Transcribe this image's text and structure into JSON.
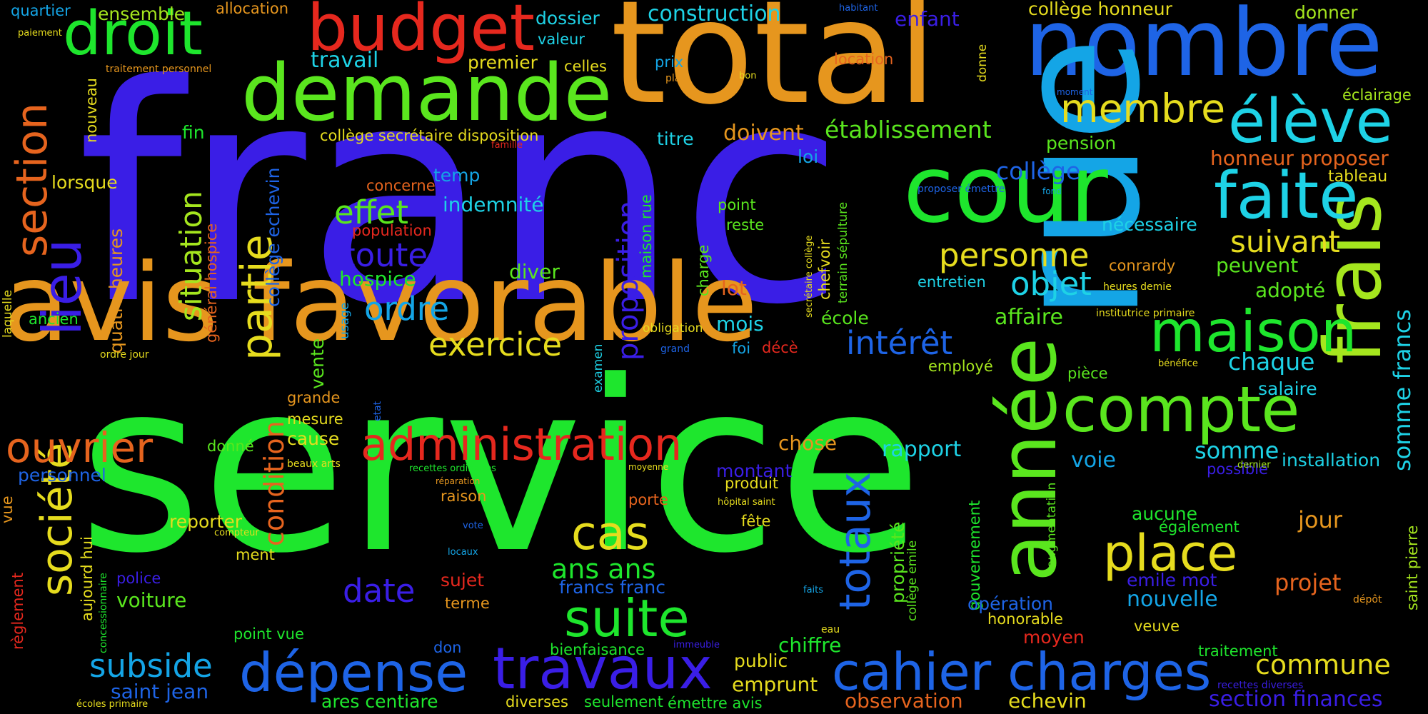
{
  "colors": {
    "background": "#000000",
    "blue_violet": "#3a1ee6",
    "green": "#1ee62d",
    "orange": "#e6961e",
    "blue": "#1e64e6",
    "sky": "#14a5e6",
    "lime": "#5ae61e",
    "red": "#e6281e",
    "yellow": "#e6dc1e",
    "cyan": "#1ed2e6"
  },
  "words": {
    "franc": "franc",
    "service": "service",
    "total": "total",
    "nombre": "nombre",
    "rue": "rue",
    "avis_favorable": "avis favorable",
    "demande": "demande",
    "budget": "budget",
    "droit": "droit",
    "cour": "cour",
    "annee": "année",
    "frais": "frais",
    "eleve": "élève",
    "faite": "faite",
    "compte": "compte",
    "maison": "maison",
    "administration": "administration",
    "travaux": "travaux",
    "depense": "dépense",
    "cahier_charges": "cahier charges",
    "place": "place",
    "suite": "suite",
    "cas": "cas",
    "lieu": "lieu",
    "section": "section",
    "partie": "partie",
    "societe": "société",
    "ouvrier": "ouvrier",
    "membre": "membre",
    "exercice": "exercice",
    "totaux": "totaux",
    "situation": "situation",
    "proposition": "proposition",
    "effet": "effet",
    "toute": "toute",
    "ordre": "ordre",
    "personne": "personne",
    "suivant": "suivant",
    "objet": "objet",
    "interet": "intérêt",
    "etablissement": "établissement",
    "college": "collège",
    "date": "date",
    "ans_ans": "ans ans",
    "subside": "subside",
    "condition": "condition",
    "commune": "commune",
    "section_finances": "section finances",
    "somme_francs": "somme francs",
    "nouvelle": "nouvelle",
    "projet": "projet",
    "jour": "jour",
    "chaque": "chaque",
    "rapport": "rapport",
    "somme": "somme",
    "voie": "voie",
    "affaire": "affaire",
    "adopte": "adopté",
    "peuvent": "peuvent",
    "pension": "pension",
    "honneur_proposer": "honneur proposer",
    "tableau": "tableau",
    "eclairage": "éclairage",
    "donner": "donner",
    "college_honneur": "collège honneur",
    "construction": "construction",
    "dossier": "dossier",
    "valeur": "valeur",
    "celles": "celles",
    "premier": "premier",
    "travail": "travail",
    "quartier": "quartier",
    "ensemble": "ensemble",
    "allocation": "allocation",
    "paiement": "paiement",
    "traitement_personnel": "traitement personnel",
    "enfant": "enfant",
    "location": "location",
    "habitant": "habitant",
    "prix": "prix",
    "plan": "plan",
    "bon": "bon",
    "donne": "donne",
    "moment": "moment",
    "nouveau": "nouveau",
    "fin": "fin",
    "college_secretaire_disposition": "collège secrétaire disposition",
    "famille": "famille",
    "titre": "titre",
    "doivent": "doivent",
    "college_echevin": "collège echevin",
    "lorsque": "lorsque",
    "concerne": "concerne",
    "temp": "temp",
    "indemnite": "indemnité",
    "population": "population",
    "hospice": "hospice",
    "diver": "diver",
    "general_hospice": "général hospice",
    "quatre_heures": "quatre heures",
    "laquelle": "laquelle",
    "ancien": "ancien",
    "ordre_jour": "ordre jour",
    "point": "point",
    "reste": "reste",
    "loi": "loi",
    "charge": "charge",
    "maison_rue": "maison rue",
    "lot": "lot",
    "mois": "mois",
    "obligation": "obligation",
    "foi": "foi",
    "grand": "grand",
    "deces": "décè",
    "examen": "examen",
    "usage": "usage",
    "vente": "vente",
    "grande": "grande",
    "mesure": "mesure",
    "cause": "cause",
    "etat": "etat",
    "beaux_arts": "beaux arts",
    "recettes_ordinaires": "recettes ordinaires",
    "reparation": "réparation",
    "moyenne": "moyenne",
    "chose": "chose",
    "montant": "montant",
    "produit": "produit",
    "hopital_saint": "hôpital saint",
    "fete": "fête",
    "porte": "porte",
    "raison": "raison",
    "reporter": "reporter",
    "compteur": "compteur",
    "donne2": "donné",
    "personnel": "personnel",
    "vue": "vue",
    "ment": "ment",
    "aujourd_hui": "aujourd hui",
    "police": "police",
    "voiture": "voiture",
    "concessionnaire": "concessionnaire",
    "reglement": "règlement",
    "point_vue": "point vue",
    "vote": "vote",
    "locaux": "locaux",
    "sujet": "sujet",
    "terme": "terme",
    "francs_franc": "francs franc",
    "don": "don",
    "bienfaisance": "bienfaisance",
    "immeuble": "immeuble",
    "faits": "faits",
    "eau": "eau",
    "chiffre": "chiffre",
    "public": "public",
    "emprunt": "emprunt",
    "saint_jean": "saint jean",
    "ares_centiare": "ares centiare",
    "diverses": "diverses",
    "seulement": "seulement",
    "emettre_avis": "émettre avis",
    "observation": "observation",
    "echevin": "echevin",
    "ecoles_primaire": "écoles primaire",
    "propriete": "propriété",
    "college_emile": "collège emile",
    "gouvernement": "gouvernement",
    "augmentation": "augmentation",
    "aucune": "aucune",
    "egalement": "également",
    "emile_mot": "emile mot",
    "operation": "opération",
    "honorable": "honorable",
    "moyen": "moyen",
    "veuve": "veuve",
    "traitement": "traitement",
    "recettes_diverses": "recettes diverses",
    "depot": "dépôt",
    "saint_pierre": "saint pierre",
    "possible": "possible",
    "installation": "installation",
    "dernier": "dernier",
    "salaire": "salaire",
    "benefice": "bénéfice",
    "piece": "pièce",
    "employe": "employé",
    "institutrice_primaire": "institutrice primaire",
    "heures_demie": "heures demie",
    "conrardy": "conrardy",
    "entretien": "entretien",
    "necessaire": "nécessaire",
    "ecole": "école",
    "secretaire_college": "secrétaire collège",
    "terrain_sepulture": "terrain sépulture",
    "chefvoir": "chefvoir",
    "proposer_emettre": "proposer émettre",
    "fond": "fond"
  }
}
